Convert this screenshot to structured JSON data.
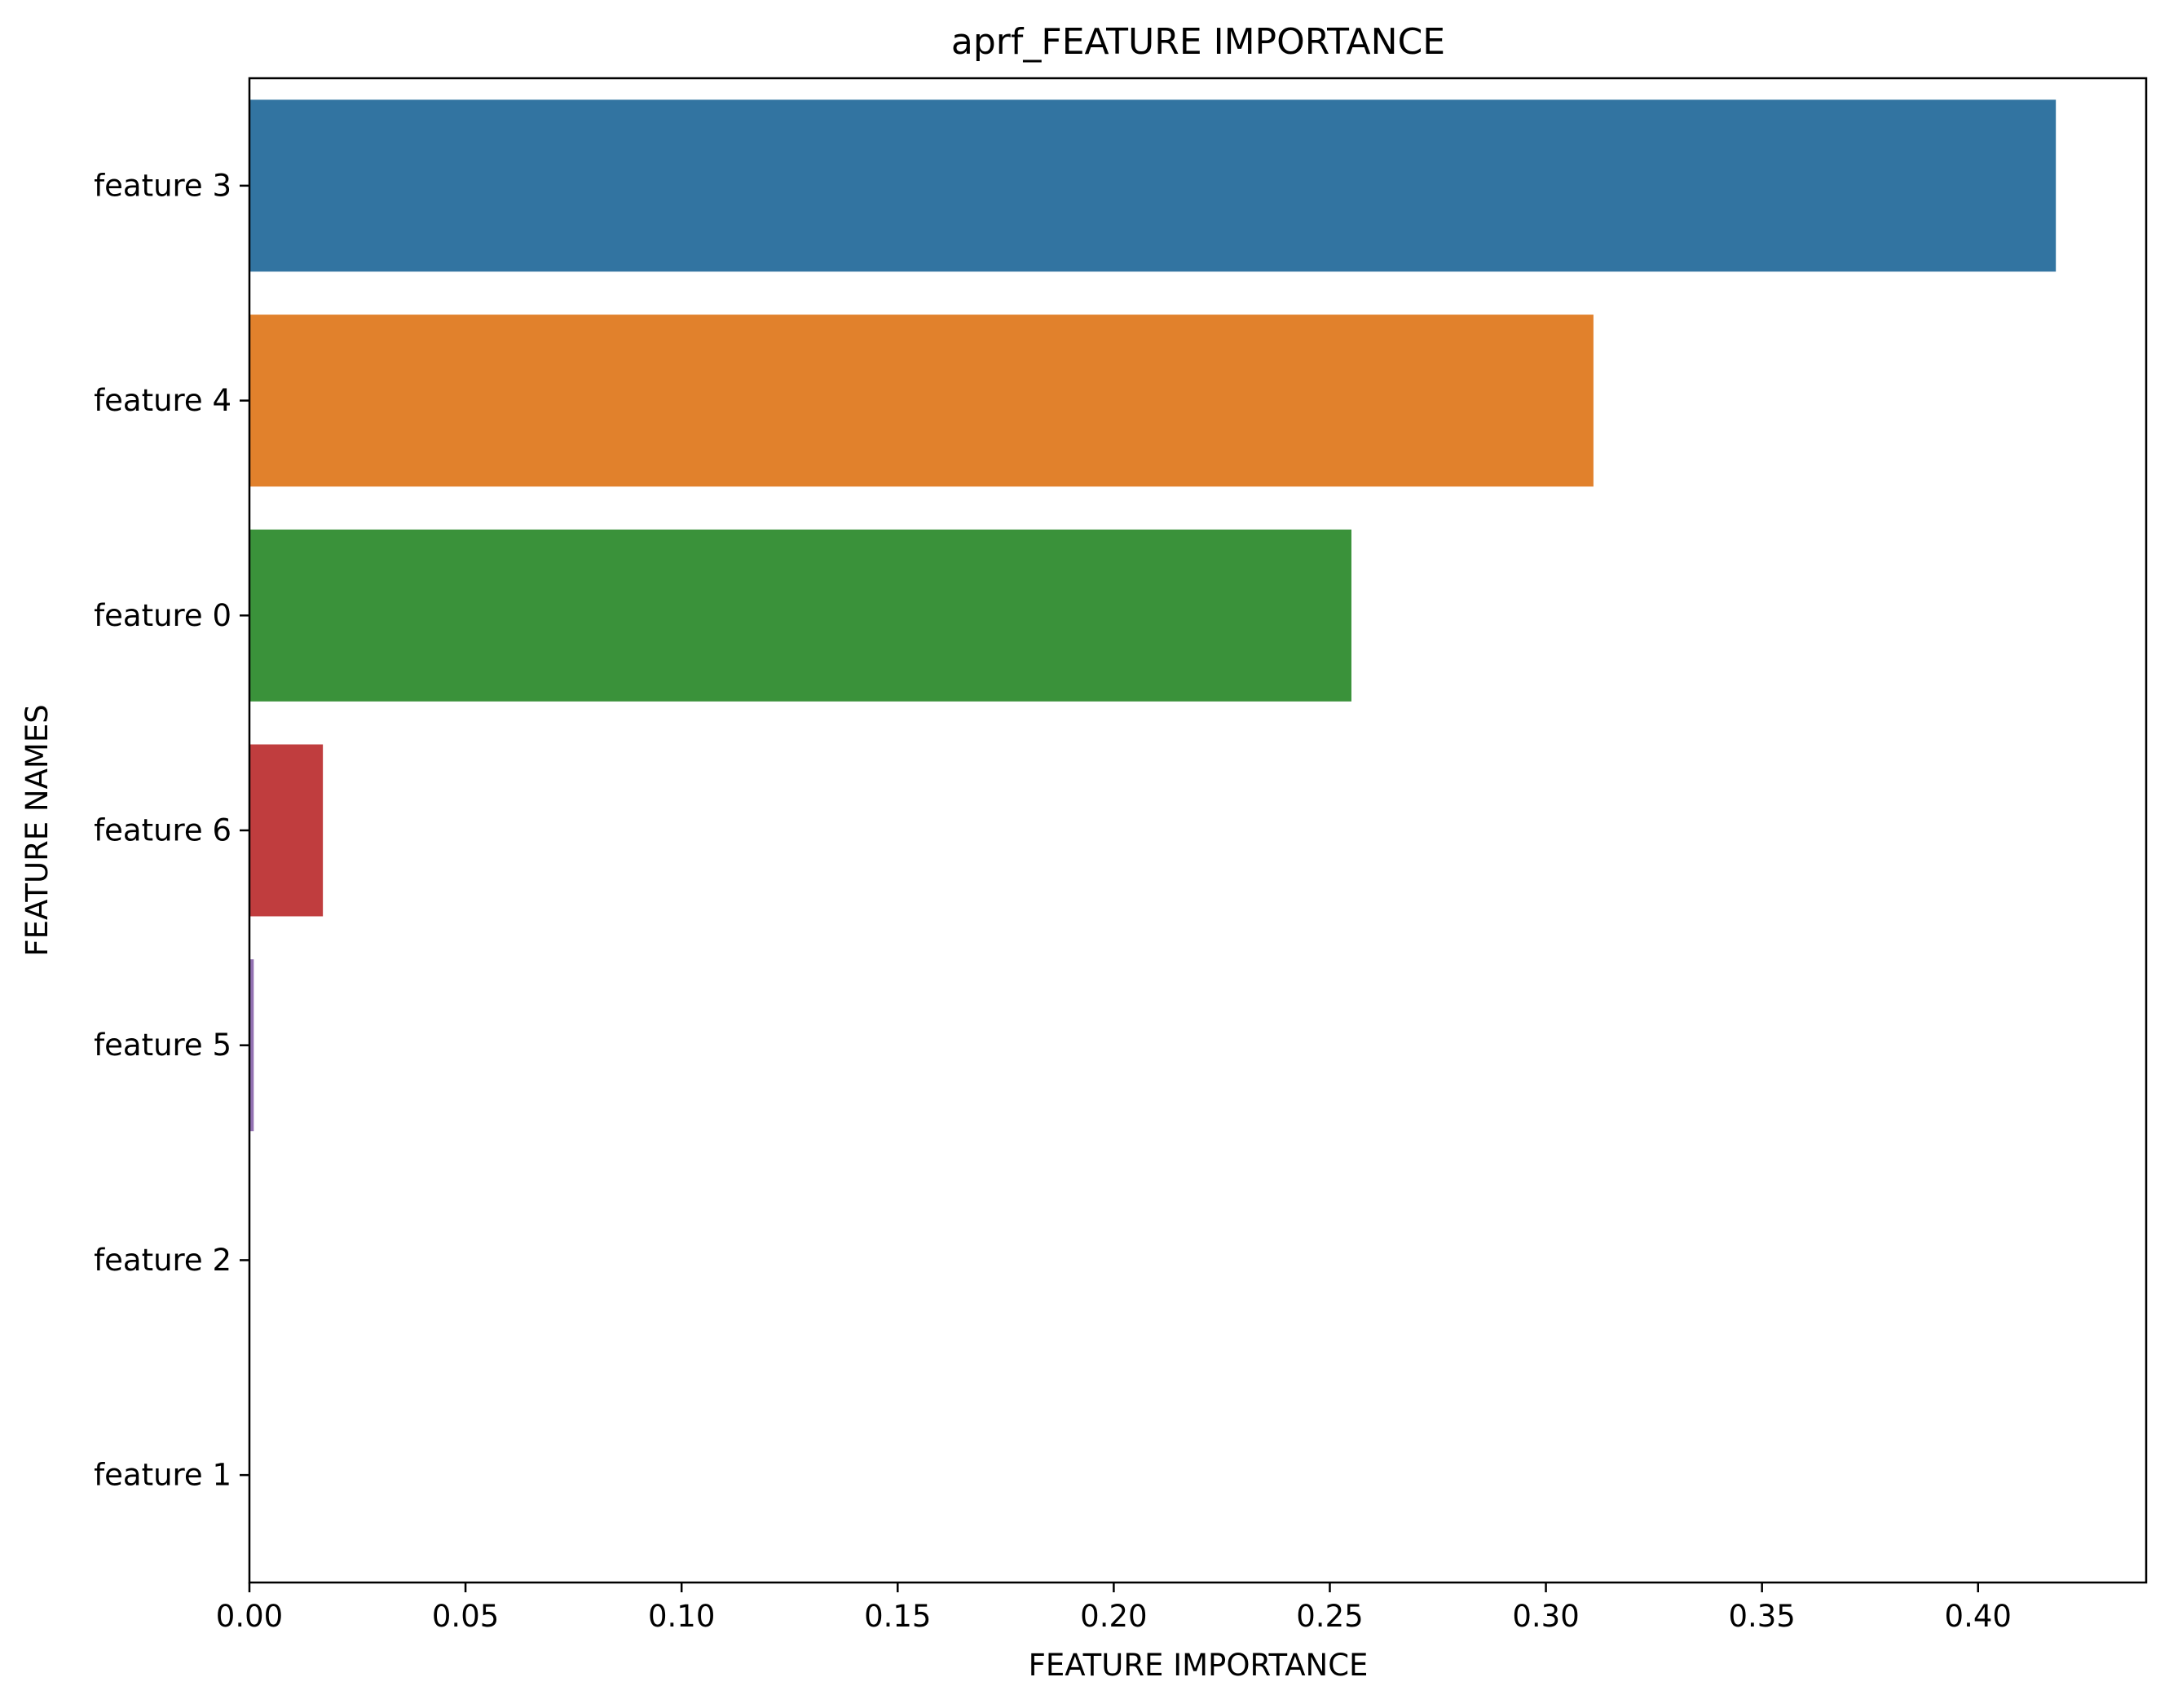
{
  "chart_data": {
    "type": "bar",
    "orientation": "horizontal",
    "title": "aprf_FEATURE IMPORTANCE",
    "xlabel": "FEATURE IMPORTANCE",
    "ylabel": "FEATURE NAMES",
    "categories": [
      "feature 3",
      "feature 4",
      "feature 0",
      "feature 6",
      "feature 5",
      "feature 2",
      "feature 1"
    ],
    "values": [
      0.418,
      0.311,
      0.255,
      0.017,
      0.001,
      0.0,
      0.0
    ],
    "colors": [
      "#3274a1",
      "#e1812c",
      "#3a923a",
      "#c03d3e",
      "#9372b2",
      "#845b53",
      "#d684bd"
    ],
    "xlim": [
      0.0,
      0.4389
    ],
    "xticks": [
      "0.00",
      "0.05",
      "0.10",
      "0.15",
      "0.20",
      "0.25",
      "0.30",
      "0.35",
      "0.40"
    ],
    "grid": false,
    "legend": false
  }
}
